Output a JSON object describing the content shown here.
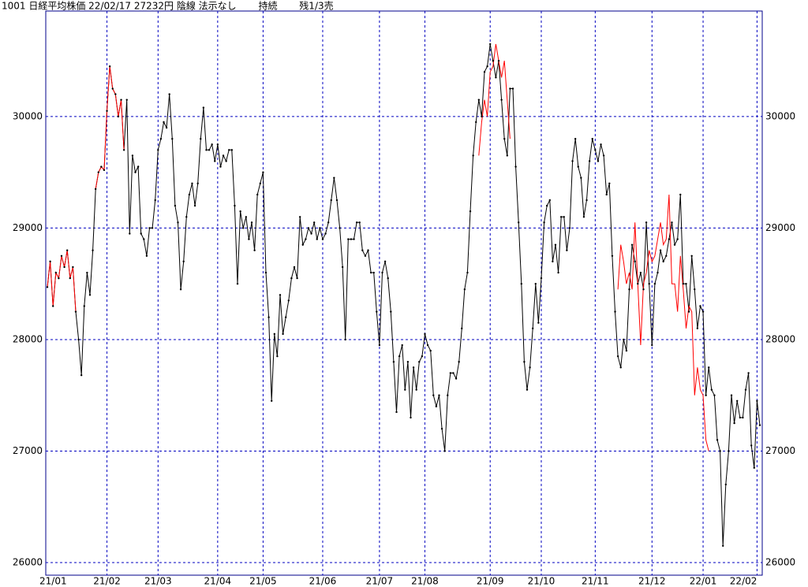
{
  "chart_data": {
    "type": "line",
    "title": "1001 日経平均株価 22/02/17 27232円 陰線 法示なし　　 持続　　 残1/3売",
    "ylim": [
      25887,
      30946
    ],
    "yticks": [
      26000,
      27000,
      28000,
      29000,
      30000
    ],
    "xlim": [
      0,
      251
    ],
    "xticks": [
      {
        "value": 0,
        "label": "21/01"
      },
      {
        "value": 21,
        "label": "21/02"
      },
      {
        "value": 39,
        "label": "21/03"
      },
      {
        "value": 60,
        "label": "21/04"
      },
      {
        "value": 76,
        "label": "21/05"
      },
      {
        "value": 97,
        "label": "21/06"
      },
      {
        "value": 117,
        "label": "21/07"
      },
      {
        "value": 133,
        "label": "21/08"
      },
      {
        "value": 156,
        "label": "21/09"
      },
      {
        "value": 174,
        "label": "21/10"
      },
      {
        "value": 193,
        "label": "21/11"
      },
      {
        "value": 213,
        "label": "21/12"
      },
      {
        "value": 231,
        "label": "22/01"
      },
      {
        "value": 250,
        "label": "22/02"
      }
    ],
    "grid": true,
    "series": [
      {
        "color": "#000000",
        "values": [
          28470,
          28700,
          28300,
          28600,
          28550,
          28750,
          28650,
          28800,
          28550,
          28650,
          28250,
          28000,
          27680,
          28300,
          28600,
          28400,
          28800,
          29350,
          29500,
          29550,
          29520,
          30050,
          30450,
          30250,
          30200,
          30000,
          30150,
          29700,
          30150,
          28950,
          29650,
          29500,
          29550,
          28950,
          28900,
          28750,
          29000,
          29000,
          29250,
          29700,
          29800,
          29950,
          29900,
          30200,
          29800,
          29200,
          29050,
          28450,
          28700,
          29100,
          29300,
          29400,
          29200,
          29400,
          29800,
          30080,
          29700,
          29700,
          29750,
          29600,
          29750,
          29550,
          29650,
          29600,
          29700,
          29700,
          29200,
          28500,
          29150,
          29000,
          29100,
          28900,
          29050,
          28800,
          29300,
          29400,
          29500,
          28600,
          28200,
          27450,
          28050,
          27850,
          28400,
          28050,
          28200,
          28350,
          28550,
          28650,
          28550,
          29100,
          28850,
          28900,
          29000,
          28950,
          29050,
          28900,
          29000,
          28900,
          28950,
          29050,
          29250,
          29450,
          29250,
          29000,
          28650,
          28000,
          28900,
          28900,
          28900,
          29050,
          29050,
          28800,
          28750,
          28800,
          28600,
          28600,
          28250,
          27950,
          28600,
          28700,
          28550,
          28250,
          27800,
          27350,
          27850,
          27950,
          27550,
          27800,
          27300,
          27750,
          27550,
          27800,
          27850,
          28050,
          27950,
          27900,
          27500,
          27400,
          27500,
          27200,
          27000,
          27500,
          27700,
          27700,
          27650,
          27800,
          28100,
          28450,
          28600,
          29150,
          29650,
          29950,
          30150,
          30000,
          30400,
          30450,
          30650,
          30500,
          30350,
          30500,
          30150,
          29800,
          29650,
          30250,
          30250,
          29550,
          29050,
          28500,
          27800,
          27550,
          27750,
          28100,
          28500,
          28150,
          28550,
          29050,
          29200,
          29250,
          28700,
          28850,
          28600,
          29100,
          29100,
          28800,
          29000,
          29600,
          29800,
          29550,
          29450,
          29100,
          29250,
          29600,
          29800,
          29700,
          29600,
          29750,
          29650,
          29300,
          29400,
          28750,
          28250,
          27850,
          27750,
          28000,
          27900,
          28450,
          28850,
          28700,
          28500,
          28600,
          28450,
          29050,
          28500,
          27950,
          28500,
          28600,
          28800,
          28700,
          28750,
          28900,
          29050,
          28850,
          28900,
          29300,
          28500,
          28500,
          28250,
          28750,
          28450,
          28100,
          28300,
          28250,
          27500,
          27750,
          27550,
          27500,
          27100,
          27000,
          26150,
          26700,
          27000,
          27500,
          27250,
          27450,
          27300,
          27300,
          27550,
          27700,
          27050,
          26850,
          27450,
          27232
        ]
      },
      {
        "color": "#ff0000",
        "values": [
          28470,
          28700,
          28300,
          28600,
          28550,
          28750,
          28650,
          28800,
          28550,
          28650,
          28250,
          null,
          null,
          null,
          null,
          null,
          null,
          29350,
          29500,
          29550,
          29520,
          30050,
          30450,
          30250,
          30200,
          30000,
          30150,
          29700,
          null,
          null,
          null,
          null,
          null,
          null,
          null,
          null,
          null,
          null,
          null,
          null,
          null,
          null,
          null,
          null,
          null,
          null,
          null,
          null,
          null,
          null,
          null,
          null,
          null,
          null,
          null,
          null,
          null,
          null,
          null,
          null,
          null,
          null,
          null,
          null,
          null,
          null,
          null,
          null,
          null,
          null,
          null,
          null,
          null,
          null,
          null,
          null,
          null,
          null,
          null,
          null,
          null,
          null,
          null,
          null,
          null,
          null,
          null,
          null,
          null,
          null,
          null,
          null,
          null,
          null,
          null,
          null,
          null,
          null,
          null,
          null,
          null,
          null,
          null,
          null,
          null,
          null,
          null,
          null,
          null,
          null,
          null,
          null,
          null,
          null,
          null,
          null,
          null,
          null,
          null,
          null,
          null,
          null,
          null,
          null,
          null,
          null,
          null,
          null,
          null,
          null,
          null,
          null,
          null,
          null,
          null,
          null,
          null,
          null,
          null,
          null,
          null,
          null,
          null,
          null,
          null,
          null,
          null,
          null,
          null,
          null,
          null,
          null,
          29650,
          29950,
          30150,
          30000,
          30400,
          30450,
          30650,
          30500,
          30350,
          30500,
          30150,
          29800,
          null,
          null,
          null,
          null,
          null,
          null,
          null,
          null,
          null,
          null,
          null,
          null,
          null,
          null,
          null,
          null,
          null,
          null,
          null,
          null,
          null,
          null,
          null,
          null,
          null,
          null,
          null,
          null,
          null,
          null,
          null,
          null,
          null,
          null,
          null,
          null,
          null,
          28450,
          28850,
          28700,
          28500,
          28600,
          28450,
          29050,
          28500,
          27950,
          28500,
          28600,
          28800,
          28700,
          28750,
          28900,
          29050,
          28850,
          28900,
          29300,
          28500,
          28500,
          28250,
          28750,
          28450,
          28100,
          28300,
          28250,
          27500,
          27750,
          27550,
          27500,
          27100,
          27000,
          null,
          null,
          null,
          null,
          null,
          null,
          null,
          null,
          null,
          null,
          null,
          null,
          null,
          null
        ]
      }
    ]
  }
}
